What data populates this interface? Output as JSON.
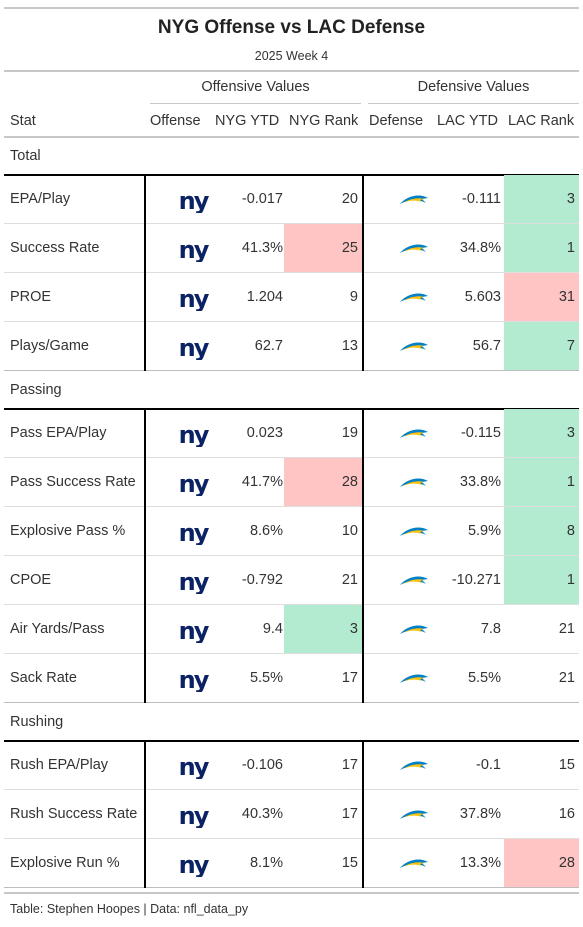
{
  "title": "NYG Offense vs LAC Defense",
  "subtitle": "2025 Week 4",
  "spanners": {
    "offense": "Offensive Values",
    "defense": "Defensive Values"
  },
  "columns": {
    "stat": "Stat",
    "offense": "Offense",
    "nyg_ytd": "NYG YTD",
    "nyg_rank": "NYG Rank",
    "defense": "Defense",
    "lac_ytd": "LAC YTD",
    "lac_rank": "LAC Rank"
  },
  "colors": {
    "good": "#b3ebd1",
    "bad": "#ffc4c4",
    "giants_blue": "#0B2265",
    "chargers_blue": "#0080C6",
    "chargers_gold": "#FFC20E"
  },
  "icons": {
    "offense_logo": "ny-logo-icon",
    "defense_logo": "chargers-bolt-icon"
  },
  "groups": [
    {
      "label": "Total",
      "rows": [
        {
          "stat": "EPA/Play",
          "nyg_ytd": "-0.017",
          "nyg_rank": "20",
          "lac_ytd": "-0.111",
          "lac_rank": "3",
          "nyg_rank_status": "none",
          "lac_rank_status": "good"
        },
        {
          "stat": "Success Rate",
          "nyg_ytd": "41.3%",
          "nyg_rank": "25",
          "lac_ytd": "34.8%",
          "lac_rank": "1",
          "nyg_rank_status": "bad",
          "lac_rank_status": "good"
        },
        {
          "stat": "PROE",
          "nyg_ytd": "1.204",
          "nyg_rank": "9",
          "lac_ytd": "5.603",
          "lac_rank": "31",
          "nyg_rank_status": "none",
          "lac_rank_status": "bad"
        },
        {
          "stat": "Plays/Game",
          "nyg_ytd": "62.7",
          "nyg_rank": "13",
          "lac_ytd": "56.7",
          "lac_rank": "7",
          "nyg_rank_status": "none",
          "lac_rank_status": "good"
        }
      ]
    },
    {
      "label": "Passing",
      "rows": [
        {
          "stat": "Pass EPA/Play",
          "nyg_ytd": "0.023",
          "nyg_rank": "19",
          "lac_ytd": "-0.115",
          "lac_rank": "3",
          "nyg_rank_status": "none",
          "lac_rank_status": "good"
        },
        {
          "stat": "Pass Success Rate",
          "nyg_ytd": "41.7%",
          "nyg_rank": "28",
          "lac_ytd": "33.8%",
          "lac_rank": "1",
          "nyg_rank_status": "bad",
          "lac_rank_status": "good"
        },
        {
          "stat": "Explosive Pass %",
          "nyg_ytd": "8.6%",
          "nyg_rank": "10",
          "lac_ytd": "5.9%",
          "lac_rank": "8",
          "nyg_rank_status": "none",
          "lac_rank_status": "good"
        },
        {
          "stat": "CPOE",
          "nyg_ytd": "-0.792",
          "nyg_rank": "21",
          "lac_ytd": "-10.271",
          "lac_rank": "1",
          "nyg_rank_status": "none",
          "lac_rank_status": "good"
        },
        {
          "stat": "Air Yards/Pass",
          "nyg_ytd": "9.4",
          "nyg_rank": "3",
          "lac_ytd": "7.8",
          "lac_rank": "21",
          "nyg_rank_status": "good",
          "lac_rank_status": "none"
        },
        {
          "stat": "Sack Rate",
          "nyg_ytd": "5.5%",
          "nyg_rank": "17",
          "lac_ytd": "5.5%",
          "lac_rank": "21",
          "nyg_rank_status": "none",
          "lac_rank_status": "none"
        }
      ]
    },
    {
      "label": "Rushing",
      "rows": [
        {
          "stat": "Rush EPA/Play",
          "nyg_ytd": "-0.106",
          "nyg_rank": "17",
          "lac_ytd": "-0.1",
          "lac_rank": "15",
          "nyg_rank_status": "none",
          "lac_rank_status": "none"
        },
        {
          "stat": "Rush Success Rate",
          "nyg_ytd": "40.3%",
          "nyg_rank": "17",
          "lac_ytd": "37.8%",
          "lac_rank": "16",
          "nyg_rank_status": "none",
          "lac_rank_status": "none"
        },
        {
          "stat": "Explosive Run %",
          "nyg_ytd": "8.1%",
          "nyg_rank": "15",
          "lac_ytd": "13.3%",
          "lac_rank": "28",
          "nyg_rank_status": "none",
          "lac_rank_status": "bad"
        }
      ]
    }
  ],
  "footer": "Table: Stephen Hoopes | Data: nfl_data_py"
}
